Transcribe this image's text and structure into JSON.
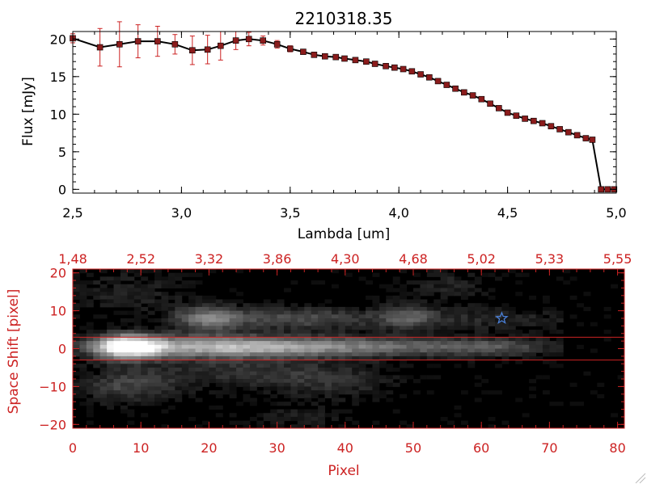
{
  "colors": {
    "frame_top": "#000000",
    "line": "#000000",
    "marker": "#8b1c1c",
    "error_bar": "#cc2222",
    "axis_bottom": "#cc2222",
    "image_bg": "#000000",
    "star": "#4a7fd6"
  },
  "chart_data": [
    {
      "type": "line",
      "title": "2210318.35",
      "xlabel": "Lambda [um]",
      "ylabel": "Flux [mJy]",
      "xlim": [
        2.5,
        5.0
      ],
      "ylim": [
        -0.5,
        21
      ],
      "xticks": [
        2.5,
        3.0,
        3.5,
        4.0,
        4.5,
        5.0
      ],
      "xtick_labels": [
        "2,5",
        "3,0",
        "3,5",
        "4,0",
        "4,5",
        "5,0"
      ],
      "yticks": [
        0,
        5,
        10,
        15,
        20
      ],
      "ytick_labels": [
        "0",
        "5",
        "10",
        "15",
        "20"
      ],
      "grid": false,
      "series": [
        {
          "x": [
            2.5,
            2.625,
            2.715,
            2.8,
            2.89,
            2.97,
            3.05,
            3.12,
            3.18,
            3.25,
            3.31,
            3.375,
            3.44,
            3.5,
            3.56,
            3.61,
            3.66,
            3.71,
            3.75,
            3.8,
            3.85,
            3.89,
            3.94,
            3.98,
            4.02,
            4.06,
            4.1,
            4.14,
            4.18,
            4.22,
            4.26,
            4.3,
            4.34,
            4.38,
            4.42,
            4.46,
            4.5,
            4.54,
            4.58,
            4.62,
            4.66,
            4.7,
            4.74,
            4.78,
            4.82,
            4.86,
            4.89,
            4.93,
            4.96,
            4.99
          ],
          "y": [
            20.1,
            18.9,
            19.3,
            19.7,
            19.7,
            19.3,
            18.5,
            18.6,
            19.1,
            19.8,
            20.0,
            19.8,
            19.3,
            18.7,
            18.3,
            17.9,
            17.7,
            17.6,
            17.4,
            17.2,
            17.0,
            16.7,
            16.4,
            16.2,
            16.0,
            15.7,
            15.3,
            14.9,
            14.4,
            13.9,
            13.4,
            12.9,
            12.5,
            12.0,
            11.4,
            10.8,
            10.2,
            9.8,
            9.4,
            9.1,
            8.8,
            8.4,
            8.0,
            7.6,
            7.2,
            6.8,
            6.6,
            0.0,
            0.0,
            0.0
          ],
          "err": [
            0.6,
            2.5,
            3.0,
            2.2,
            2.0,
            1.3,
            1.9,
            1.9,
            1.9,
            1.2,
            0.9,
            0.6,
            0.5,
            0.4,
            0.3,
            0.3,
            0.3,
            0.3,
            0.3,
            0.3,
            0.3,
            0.3,
            0.3,
            0.3,
            0.3,
            0.3,
            0.3,
            0.3,
            0.3,
            0.3,
            0.3,
            0.3,
            0.3,
            0.3,
            0.3,
            0.3,
            0.3,
            0.3,
            0.3,
            0.3,
            0.3,
            0.3,
            0.3,
            0.3,
            0.3,
            0.3,
            0.3,
            0.2,
            0.2,
            0.2
          ]
        }
      ]
    },
    {
      "type": "heatmap",
      "xlabel": "Pixel",
      "ylabel": "Space Shift [pixel]",
      "xlim": [
        0,
        81
      ],
      "ylim": [
        -21,
        21
      ],
      "xticks": [
        0,
        10,
        20,
        30,
        40,
        50,
        60,
        70,
        80
      ],
      "xtick_labels": [
        "0",
        "10",
        "20",
        "30",
        "40",
        "50",
        "60",
        "70",
        "80"
      ],
      "yticks": [
        -20,
        -10,
        0,
        10,
        20
      ],
      "ytick_labels": [
        "−20",
        "−10",
        "0",
        "10",
        "20"
      ],
      "top_axis_ticks": [
        0,
        10,
        20,
        30,
        40,
        50,
        60,
        70,
        80
      ],
      "top_axis_labels": [
        "1,48",
        "2,52",
        "3,32",
        "3,86",
        "4,30",
        "4,68",
        "5,02",
        "5,33",
        "5,55"
      ],
      "extraction_lines_y": [
        3,
        -3
      ],
      "star_marker": {
        "x": 63,
        "y": 8
      },
      "features": [
        {
          "x": 8,
          "y": 0.5,
          "sx": 3.5,
          "sy": 2.2,
          "amp": 1.0
        },
        {
          "x": 20,
          "y": 0.5,
          "sx": 10,
          "sy": 2.0,
          "amp": 0.55
        },
        {
          "x": 40,
          "y": 0.5,
          "sx": 14,
          "sy": 1.9,
          "amp": 0.45
        },
        {
          "x": 62,
          "y": 0.5,
          "sx": 6,
          "sy": 1.6,
          "amp": 0.22
        },
        {
          "x": 20,
          "y": 8,
          "sx": 3.5,
          "sy": 2.3,
          "amp": 0.45
        },
        {
          "x": 33,
          "y": 8,
          "sx": 8,
          "sy": 2.0,
          "amp": 0.3
        },
        {
          "x": 49,
          "y": 8.5,
          "sx": 3,
          "sy": 2.2,
          "amp": 0.28
        },
        {
          "x": 60,
          "y": 8,
          "sx": 10,
          "sy": 2.2,
          "amp": 0.14
        },
        {
          "x": 8,
          "y": -10,
          "sx": 5,
          "sy": 3,
          "amp": 0.25
        },
        {
          "x": 25,
          "y": -6,
          "sx": 10,
          "sy": 3,
          "amp": 0.18
        },
        {
          "x": 38,
          "y": -9,
          "sx": 6,
          "sy": 3,
          "amp": 0.15
        },
        {
          "x": 8,
          "y": 15,
          "sx": 6,
          "sy": 4,
          "amp": 0.12
        },
        {
          "x": 55,
          "y": 17,
          "sx": 4,
          "sy": 3,
          "amp": 0.12
        },
        {
          "x": 33,
          "y": -18,
          "sx": 5,
          "sy": 2,
          "amp": 0.1
        }
      ]
    }
  ]
}
